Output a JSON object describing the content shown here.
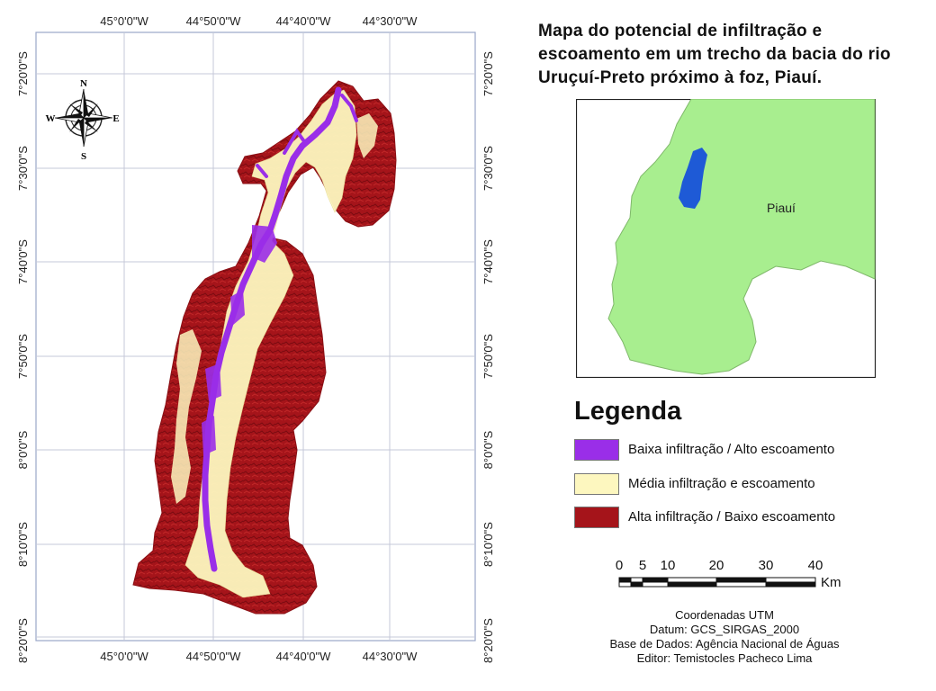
{
  "title": "Mapa do potencial de infiltração e escoamento em um trecho da bacia do rio Uruçuí-Preto próximo à foz, Piauí.",
  "map_grid": {
    "top_ticks": [
      "45°0'0\"W",
      "44°50'0\"W",
      "44°40'0\"W",
      "44°30'0\"W"
    ],
    "bottom_ticks": [
      "45°0'0\"W",
      "44°50'0\"W",
      "44°40'0\"W",
      "44°30'0\"W"
    ],
    "left_ticks": [
      "7°20'0\"S",
      "7°30'0\"S",
      "7°40'0\"S",
      "7°50'0\"S",
      "8°0'0\"S",
      "8°10'0\"S",
      "8°20'0\"S"
    ],
    "right_ticks": [
      "7°20'0\"S",
      "7°30'0\"S",
      "7°40'0\"S",
      "7°50'0\"S",
      "8°0'0\"S",
      "8°10'0\"S",
      "8°20'0\"S"
    ]
  },
  "compass": {
    "n": "N",
    "s": "S",
    "e": "E",
    "w": "W"
  },
  "inset": {
    "label": "Piauí",
    "land_color": "#a8ee8f",
    "highlight_color": "#1e5ad6"
  },
  "legend": {
    "title": "Legenda",
    "items": [
      {
        "label": "Baixa infiltração / Alto escoamento",
        "color": "#9a2ee8"
      },
      {
        "label": "Média infiltração e escoamento",
        "color": "#fdf7bf"
      },
      {
        "label": "Alta infiltração / Baixo escoamento",
        "color": "#a5141a"
      }
    ]
  },
  "scale_bar": {
    "labels": [
      "0",
      "5",
      "10",
      "20",
      "30",
      "40"
    ],
    "unit": "Km"
  },
  "credits": [
    "Coordenadas UTM",
    "Datum: GCS_SIRGAS_2000",
    "Base de Dados: Agência Nacional de Águas",
    "Editor: Temistocles Pacheco Lima"
  ]
}
